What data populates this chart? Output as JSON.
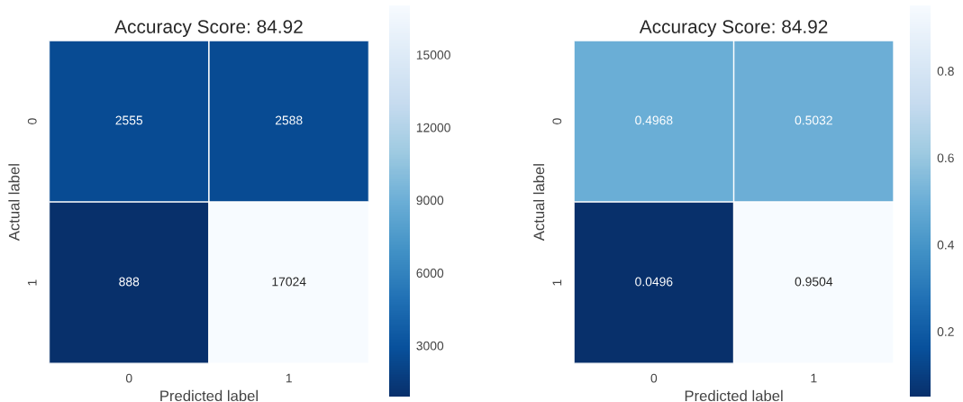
{
  "chart_data": [
    {
      "type": "heatmap",
      "title": "Accuracy Score: 84.92",
      "xlabel": "Predicted label",
      "ylabel": "Actual label",
      "categories": [
        "0",
        "1"
      ],
      "y_categories": [
        "0",
        "1"
      ],
      "cells": [
        [
          2555,
          2588
        ],
        [
          888,
          17024
        ]
      ],
      "data_labels": true,
      "clim": [
        888,
        17024
      ],
      "cticks": [
        3000,
        6000,
        9000,
        12000,
        15000
      ]
    },
    {
      "type": "heatmap",
      "title": "Accuracy Score: 84.92",
      "xlabel": "Predicted label",
      "ylabel": "Actual label",
      "categories": [
        "0",
        "1"
      ],
      "y_categories": [
        "0",
        "1"
      ],
      "cells": [
        [
          0.4968,
          0.5032
        ],
        [
          0.0496,
          0.9504
        ]
      ],
      "data_labels": true,
      "clim": [
        0.0496,
        0.9504
      ],
      "cticks": [
        0.2,
        0.4,
        0.6,
        0.8
      ]
    }
  ]
}
